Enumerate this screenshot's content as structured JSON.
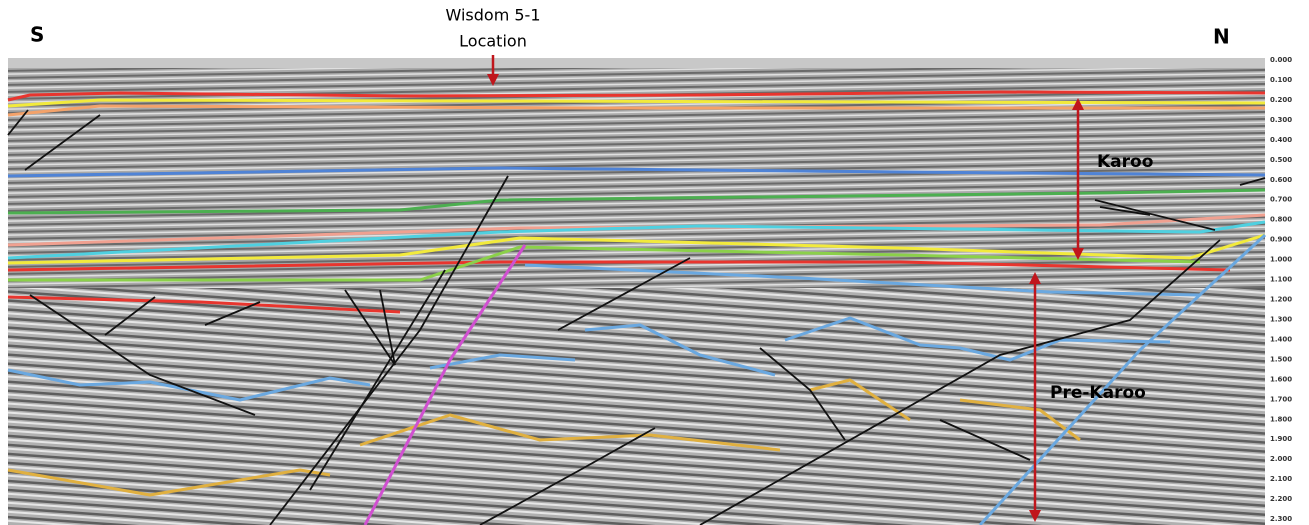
{
  "header": {
    "left": "S",
    "right": "N"
  },
  "well": {
    "name": "Wisdom 5-1",
    "label": "Location"
  },
  "annotations": {
    "upper": "Karoo",
    "lower": "Pre-Karoo"
  },
  "time_axis": {
    "labels": [
      "0.000",
      "0.100",
      "0.200",
      "0.300",
      "0.400",
      "0.500",
      "0.600",
      "0.700",
      "0.800",
      "0.900",
      "1.000",
      "1.100",
      "1.200",
      "1.300",
      "1.400",
      "1.500",
      "1.600",
      "1.700",
      "1.800",
      "1.900",
      "2.000",
      "2.100",
      "2.200",
      "2.300"
    ]
  }
}
